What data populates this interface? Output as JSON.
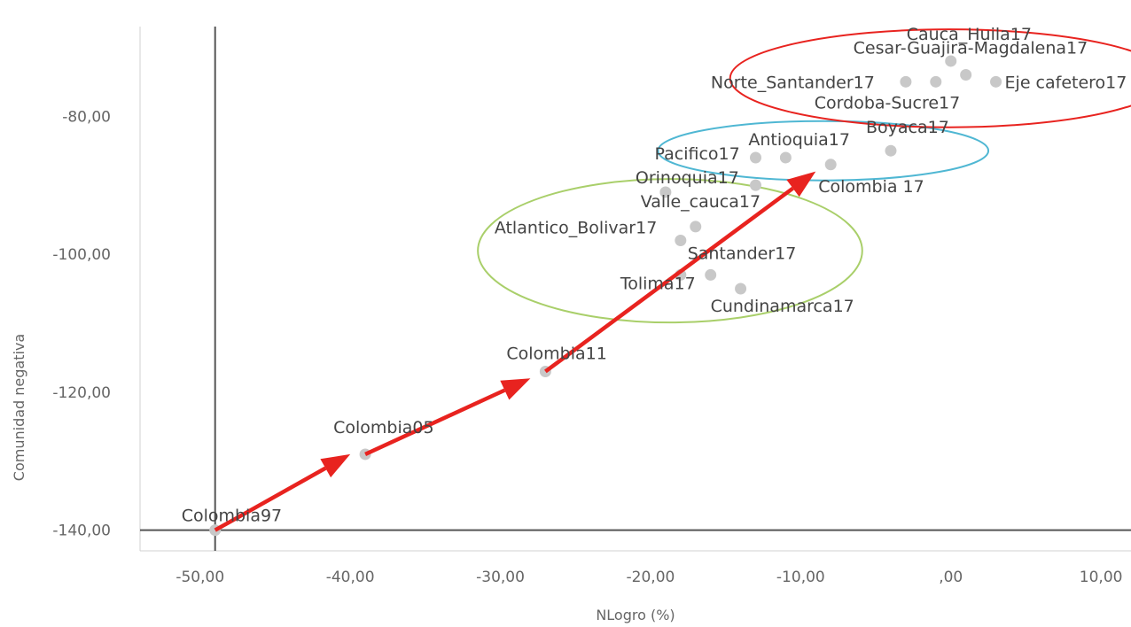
{
  "chart_data": {
    "type": "scatter",
    "title": "",
    "xlabel": "NLogro (%)",
    "ylabel": "Comunidad negativa",
    "xlim": [
      -54,
      12
    ],
    "ylim": [
      -143,
      -67
    ],
    "x_ticks": [
      -50,
      -40,
      -30,
      -20,
      -10,
      0,
      10
    ],
    "x_tick_labels": [
      "-50,00",
      "-40,00",
      "-30,00",
      "-20,00",
      "-10,00",
      ",00",
      "10,00"
    ],
    "y_ticks": [
      -80,
      -100,
      -120,
      -140
    ],
    "y_tick_labels": [
      "-80,00",
      "-100,00",
      "-120,00",
      "-140,00"
    ],
    "reference_lines": {
      "x": -49,
      "y": -140
    },
    "grid": false,
    "legend": "none",
    "point_color": "#c8c8c8",
    "points": [
      {
        "label": "Colombia97",
        "x": -49,
        "y": -140
      },
      {
        "label": "Colombia05",
        "x": -39,
        "y": -129
      },
      {
        "label": "Colombia11",
        "x": -27,
        "y": -117
      },
      {
        "label": "Tolima17",
        "x": -18,
        "y": -103
      },
      {
        "label": "Cundinamarca17",
        "x": -14,
        "y": -105
      },
      {
        "label": "Santander17",
        "x": -16,
        "y": -103
      },
      {
        "label": "Atlantico_Bolivar17",
        "x": -18,
        "y": -98
      },
      {
        "label": "Valle_cauca17",
        "x": -17,
        "y": -96
      },
      {
        "label": "Orinoquia17",
        "x": -19,
        "y": -91
      },
      {
        "label": "Pacifico17",
        "x": -13,
        "y": -86
      },
      {
        "label": "Antioquia17",
        "x": -11,
        "y": -86
      },
      {
        "label": "Colombia 17",
        "x": -8,
        "y": -87
      },
      {
        "label": "Boyaca17",
        "x": -4,
        "y": -85
      },
      {
        "label": "",
        "x": -13,
        "y": -90
      },
      {
        "label": "Norte_Santander17",
        "x": -3,
        "y": -75
      },
      {
        "label": "Cordoba-Sucre17",
        "x": -1,
        "y": -75
      },
      {
        "label": "Cesar-Guajira-Magdalena17",
        "x": 1,
        "y": -74
      },
      {
        "label": "Cauca_Huila17",
        "x": 0,
        "y": -72
      },
      {
        "label": "Eje cafetero17",
        "x": 3,
        "y": -75
      }
    ],
    "arrows": [
      {
        "from": [
          -49,
          -140
        ],
        "to": [
          -40,
          -129
        ],
        "color": "#e8231f"
      },
      {
        "from": [
          -39,
          -129
        ],
        "to": [
          -28,
          -118
        ],
        "color": "#e8231f"
      },
      {
        "from": [
          -27,
          -117
        ],
        "to": [
          -9,
          -88
        ],
        "color": "#e8231f"
      }
    ],
    "ellipses": [
      {
        "cx": -18.7,
        "cy": -99.5,
        "rx": 12.8,
        "ry": 10.4,
        "color": "#a9cf6a"
      },
      {
        "cx": -8.5,
        "cy": -85,
        "rx": 11,
        "ry": 4.3,
        "color": "#4fb7d3"
      },
      {
        "cx": -0.1,
        "cy": -74.5,
        "rx": 14.6,
        "ry": 7.1,
        "color": "#e8231f"
      }
    ]
  }
}
